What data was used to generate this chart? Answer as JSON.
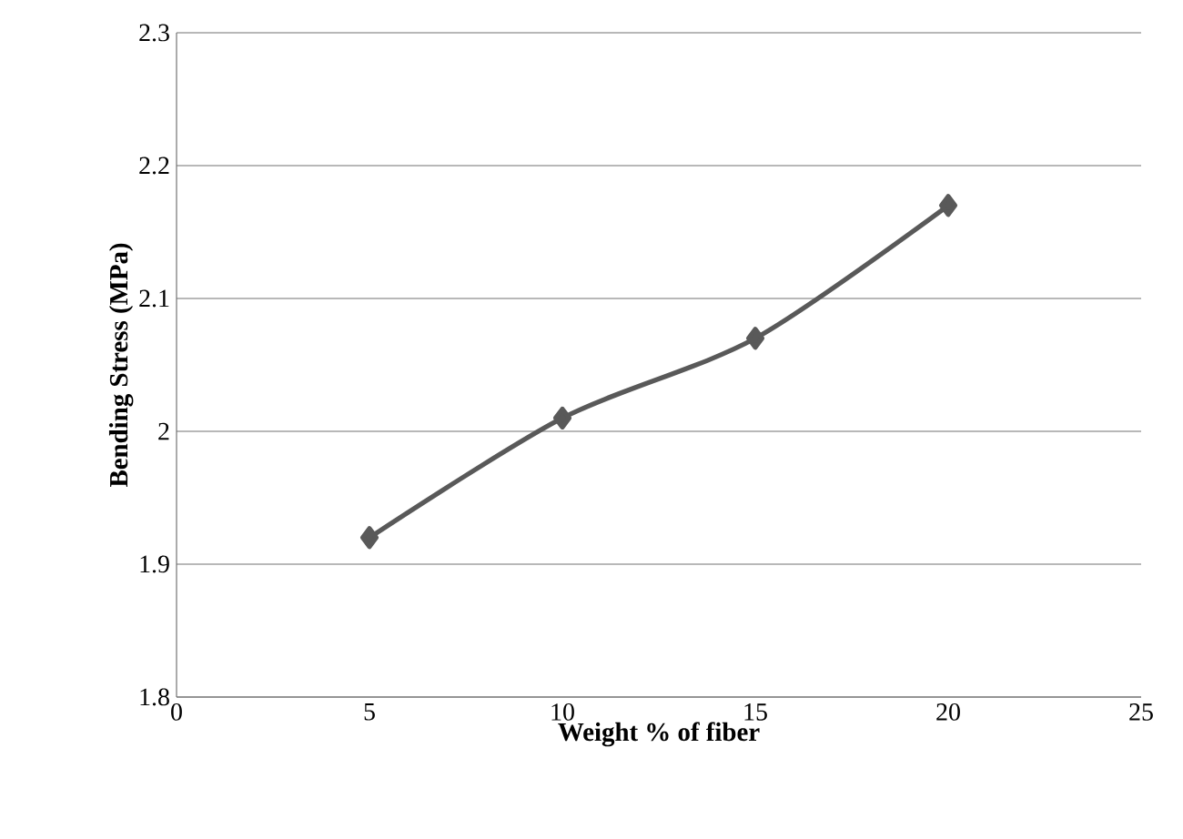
{
  "chart_data": {
    "type": "line",
    "xlabel": "Weight % of fiber",
    "ylabel": "Bending Stress (MPa)",
    "x": [
      5,
      10,
      15,
      20
    ],
    "series": [
      {
        "color": "#595959",
        "values": [
          1.92,
          2.01,
          2.07,
          2.17
        ]
      }
    ],
    "xlim": [
      0,
      25
    ],
    "xticks": [
      0,
      5,
      10,
      15,
      20,
      25
    ],
    "ylim": [
      1.8,
      2.3
    ],
    "yticks": [
      1.8,
      1.9,
      {
        "value": 2.0,
        "label": "2"
      },
      2.1,
      2.2,
      2.3
    ],
    "grid": "y",
    "marker": "diamond",
    "line_style": "solid"
  }
}
